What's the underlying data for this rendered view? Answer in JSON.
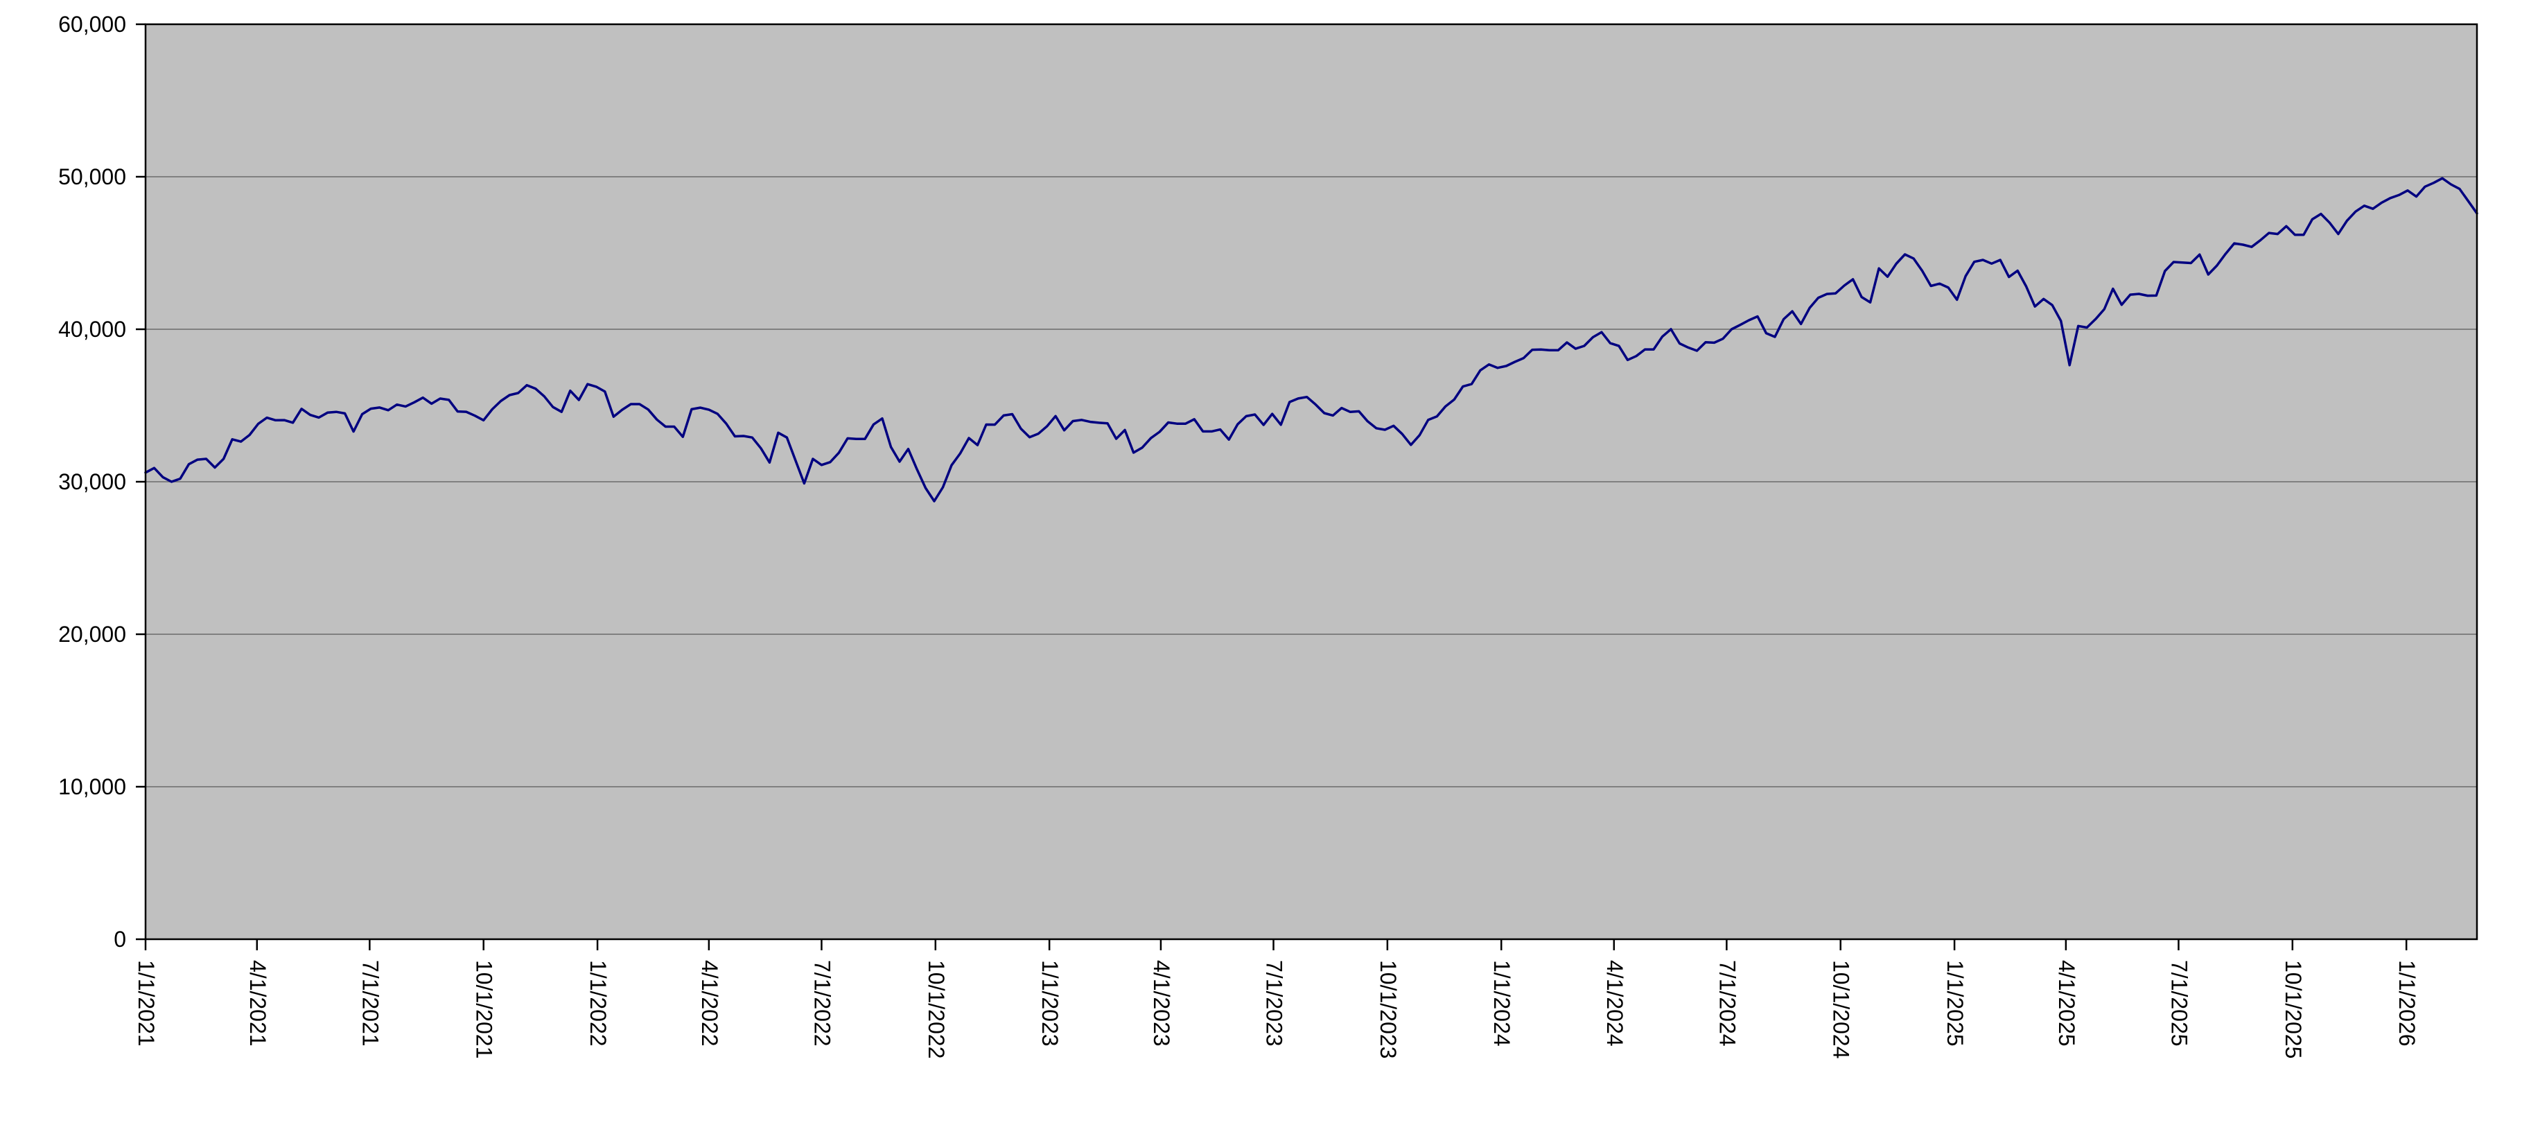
{
  "chart_data": {
    "type": "line",
    "title": "",
    "legend": "none",
    "grid": true,
    "ylim": [
      0,
      60000
    ],
    "y_ticks": [
      0,
      10000,
      20000,
      30000,
      40000,
      50000,
      60000
    ],
    "y_tick_labels": [
      "0",
      "10,000",
      "20,000",
      "30,000",
      "40,000",
      "50,000",
      "60,000"
    ],
    "x_start_date": "1/1/2021",
    "x_interval_days": 7,
    "x_tick_labels": [
      "1/1/2021",
      "4/1/2021",
      "7/1/2021",
      "10/1/2021",
      "1/1/2022",
      "4/1/2022",
      "7/1/2022",
      "10/1/2022",
      "1/1/2023",
      "4/1/2023",
      "7/1/2023",
      "10/1/2023",
      "1/1/2024",
      "4/1/2024",
      "7/1/2024",
      "10/1/2024",
      "1/1/2025",
      "4/1/2025",
      "7/1/2025",
      "10/1/2025",
      "1/1/2026"
    ],
    "values": [
      30600,
      30900,
      30300,
      30000,
      30200,
      31150,
      31450,
      31500,
      30930,
      31500,
      32780,
      32630,
      33070,
      33800,
      34200,
      34030,
      34040,
      33875,
      34780,
      34380,
      34210,
      34530,
      34580,
      34480,
      33290,
      34430,
      34790,
      34870,
      34690,
      35060,
      34935,
      35210,
      35515,
      35120,
      35455,
      35370,
      34610,
      34585,
      34330,
      34030,
      34750,
      35295,
      35680,
      35820,
      36330,
      36100,
      35600,
      34900,
      34580,
      35970,
      35365,
      36400,
      36230,
      35912,
      34265,
      34725,
      35090,
      35090,
      34738,
      34079,
      33615,
      33615,
      32944,
      34755,
      34861,
      34721,
      34451,
      33811,
      32977,
      33000,
      32900,
      32197,
      31262,
      33213,
      32900,
      31393,
      29889,
      31500,
      31100,
      31288,
      31899,
      32845,
      32803,
      32803,
      33761,
      34152,
      32283,
      31318,
      32152,
      30822,
      29590,
      28726,
      29635,
      31083,
      31859,
      32862,
      32403,
      33748,
      33746,
      34347,
      34430,
      33476,
      32920,
      33147,
      33631,
      34303,
      33375,
      33978,
      34053,
      33926,
      33869,
      33827,
      32817,
      33391,
      31910,
      32238,
      32859,
      33274,
      33886,
      33809,
      33809,
      34098,
      33300,
      33301,
      33427,
      32764,
      33763,
      34299,
      34408,
      33727,
      34450,
      33735,
      35228,
      35459,
      35559,
      35065,
      34500,
      34347,
      34837,
      34576,
      34618,
      33964,
      33508,
      33408,
      33670,
      33127,
      32418,
      33053,
      34061,
      34283,
      34947,
      35390,
      36246,
      36404,
      37306,
      37690,
      37467,
      37593,
      37864,
      38109,
      38654,
      38672,
      38628,
      38628,
      39132,
      38722,
      38910,
      39476,
      39807,
      39087,
      38904,
      37986,
      38240,
      38676,
      38676,
      39513,
      40004,
      39070,
      38799,
      38589,
      39150,
      39119,
      39376,
      40001,
      40288,
      40589,
      40843,
      39737,
      39498,
      40660,
      41175,
      40345,
      41394,
      42063,
      42313,
      42353,
      42864,
      43276,
      42114,
      41763,
      43989,
      43445,
      44297,
      44911,
      44643,
      43828,
      42840,
      42992,
      42732,
      41938,
      43488,
      44424,
      44545,
      44303,
      44546,
      43428,
      43841,
      42802,
      41489,
      41985,
      41584,
      40546,
      37645,
      40213,
      40114,
      40670,
      41318,
      42655,
      41603,
      42270,
      42320,
      42198,
      42207,
      43819,
      44407,
      44372,
      44342,
      44902,
      43589,
      44176,
      44946,
      45632,
      45545,
      45401,
      45834,
      46315,
      46247,
      46758,
      46190,
      46191,
      47207,
      47563,
      46987,
      46245,
      47112,
      47717,
      48100,
      47900,
      48300,
      48600,
      48800,
      49100,
      48700,
      49350,
      49600,
      49900,
      49500,
      49200,
      48400,
      47600
    ],
    "colors": {
      "line": "#000080",
      "plot_bg": "#c0c0c0",
      "gridline": "#808080",
      "axis": "#000000",
      "label": "#000000",
      "background": "#ffffff"
    }
  }
}
